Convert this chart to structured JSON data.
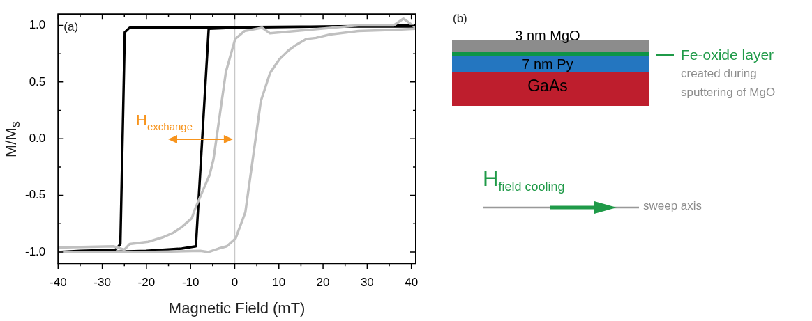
{
  "chart_data": [
    {
      "type": "line",
      "xlabel": "Magnetic Field (mT)",
      "ylabel": "M/M$_{s}$",
      "xlim": [
        -40,
        41
      ],
      "xticks": [
        -40,
        {
          "value": -35,
          "label": null
        },
        -30,
        {
          "value": -25,
          "label": null
        },
        -20,
        {
          "value": -15,
          "label": null
        },
        -10,
        {
          "value": -5,
          "label": null
        },
        0,
        {
          "value": 5,
          "label": null
        },
        10,
        {
          "value": 15,
          "label": null
        },
        20,
        {
          "value": 25,
          "label": null
        },
        30,
        {
          "value": 35,
          "label": null
        },
        40
      ],
      "ylim": [
        -1.1,
        1.1
      ],
      "yticks": [
        {
          "value": -1,
          "label": "-1.0"
        },
        {
          "value": -0.75,
          "label": null
        },
        {
          "value": -0.5,
          "label": "-0.5"
        },
        {
          "value": -0.25,
          "label": null
        },
        {
          "value": 0,
          "label": "0.0"
        },
        {
          "value": 0.25,
          "label": null
        },
        {
          "value": 0.5,
          "label": "0.5"
        },
        {
          "value": 0.75,
          "label": null
        },
        {
          "value": 1,
          "label": "1.0"
        }
      ],
      "marker": "none",
      "series": [
        {
          "color": "#c0c0c0",
          "x": [
            41,
            38.2,
            36,
            28,
            8,
            6.2,
            2.2,
            0.1,
            -2,
            -4.8,
            -5.7,
            -9,
            -9.7,
            -12,
            -13.9,
            -16.3,
            -19.6,
            -23.8,
            -25,
            -27.5,
            -40,
            -40,
            -20,
            -7.8,
            -5.9,
            -3.7,
            -1.8,
            0.2,
            2.4,
            4.3,
            5.9,
            8,
            10.1,
            12.2,
            14,
            16.2,
            18.4,
            21.6,
            28,
            35.3,
            41
          ],
          "values": [
            0.98,
            1.06,
            1.0,
            1.0,
            0.93,
            0.98,
            0.95,
            0.88,
            0.59,
            -0.18,
            -0.32,
            -0.62,
            -0.7,
            -0.78,
            -0.83,
            -0.87,
            -0.91,
            -0.93,
            -0.98,
            -0.95,
            -0.96,
            -1.0,
            -1.0,
            -0.99,
            -1.0,
            -0.97,
            -0.95,
            -0.88,
            -0.65,
            -0.12,
            0.33,
            0.58,
            0.7,
            0.78,
            0.83,
            0.88,
            0.89,
            0.92,
            0.95,
            0.96,
            0.97
          ]
        },
        {
          "color": "#000000",
          "x": [
            41,
            20,
            0,
            -10,
            -23.8,
            -24.9,
            -25.9,
            -27,
            -35,
            -40,
            -30,
            -20,
            -12,
            -8.8,
            -5.9,
            0,
            20,
            41
          ],
          "values": [
            0.99,
            0.99,
            0.985,
            0.98,
            0.98,
            0.94,
            -0.93,
            -0.98,
            -0.99,
            -1.0,
            -1.0,
            -0.99,
            -0.97,
            -0.95,
            0.97,
            0.98,
            0.99,
            1.0
          ]
        }
      ],
      "ref_lines": [
        {
          "axis": "x",
          "value": 0,
          "color": "#c8c8c8"
        }
      ],
      "annotations": [
        "(a)",
        "H$_{exchange}$"
      ]
    },
    {
      "type": "other",
      "annotations": [
        "(b)",
        "3 nm MgO",
        "7 nm Py",
        "GaAs",
        "Fe-oxide layer",
        "created during",
        "sputtering of MgO",
        "H$_{field cooling}$",
        "sweep axis"
      ]
    }
  ]
}
